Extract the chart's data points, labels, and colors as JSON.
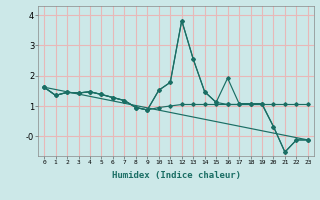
{
  "xlabel": "Humidex (Indice chaleur)",
  "bg_color": "#cce8e8",
  "grid_color": "#e8b8b8",
  "line_color": "#1a6e64",
  "xlim": [
    -0.5,
    23.5
  ],
  "ylim": [
    -0.65,
    4.3
  ],
  "series": [
    {
      "x": [
        0,
        1,
        2,
        3,
        4,
        5,
        6,
        7,
        8,
        9,
        10,
        11,
        12,
        13,
        14,
        15,
        16,
        17,
        18,
        19,
        20,
        21,
        22,
        23
      ],
      "y": [
        1.62,
        1.35,
        1.45,
        1.43,
        1.47,
        1.38,
        1.28,
        1.18,
        0.95,
        0.87,
        1.52,
        1.78,
        3.82,
        2.55,
        1.47,
        1.12,
        1.92,
        1.08,
        1.08,
        1.08,
        0.32,
        -0.52,
        -0.12,
        -0.12
      ]
    },
    {
      "x": [
        0,
        1,
        2,
        3,
        4,
        5,
        6,
        7,
        8,
        9,
        10,
        11,
        12,
        13,
        14,
        15,
        16,
        17,
        18,
        19,
        20,
        21,
        22,
        23
      ],
      "y": [
        1.62,
        1.35,
        1.45,
        1.43,
        1.47,
        1.38,
        1.28,
        1.18,
        0.95,
        0.87,
        1.52,
        1.78,
        3.82,
        2.55,
        1.47,
        1.12,
        1.05,
        1.05,
        1.05,
        1.05,
        0.32,
        -0.52,
        -0.12,
        -0.12
      ]
    },
    {
      "x": [
        0,
        1,
        2,
        3,
        4,
        5,
        6,
        7,
        8,
        9,
        10,
        11,
        12,
        13,
        14,
        15,
        16,
        17,
        18,
        19,
        20,
        21,
        22,
        23
      ],
      "y": [
        1.62,
        1.35,
        1.45,
        1.43,
        1.47,
        1.38,
        1.28,
        1.18,
        0.95,
        0.87,
        0.95,
        1.0,
        1.05,
        1.05,
        1.05,
        1.05,
        1.05,
        1.05,
        1.05,
        1.05,
        1.05,
        1.05,
        1.05,
        1.05
      ]
    },
    {
      "x": [
        0,
        23
      ],
      "y": [
        1.62,
        -0.12
      ]
    }
  ]
}
